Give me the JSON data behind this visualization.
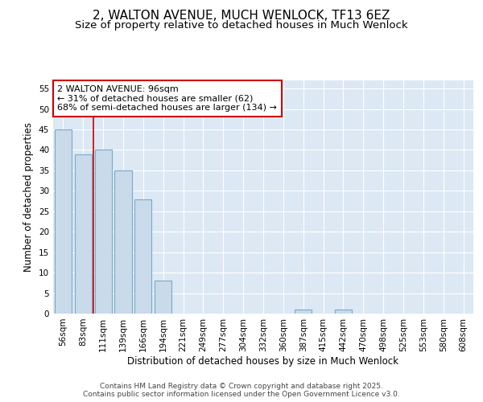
{
  "title_line1": "2, WALTON AVENUE, MUCH WENLOCK, TF13 6EZ",
  "title_line2": "Size of property relative to detached houses in Much Wenlock",
  "xlabel": "Distribution of detached houses by size in Much Wenlock",
  "ylabel": "Number of detached properties",
  "categories": [
    "56sqm",
    "83sqm",
    "111sqm",
    "139sqm",
    "166sqm",
    "194sqm",
    "221sqm",
    "249sqm",
    "277sqm",
    "304sqm",
    "332sqm",
    "360sqm",
    "387sqm",
    "415sqm",
    "442sqm",
    "470sqm",
    "498sqm",
    "525sqm",
    "553sqm",
    "580sqm",
    "608sqm"
  ],
  "values": [
    45,
    39,
    40,
    35,
    28,
    8,
    0,
    0,
    0,
    0,
    0,
    0,
    1,
    0,
    1,
    0,
    0,
    0,
    0,
    0,
    0
  ],
  "bar_color": "#c9daea",
  "bar_edgecolor": "#7aaac8",
  "vline_x": 1.5,
  "vline_color": "#cc0000",
  "annotation_text": "2 WALTON AVENUE: 96sqm\n← 31% of detached houses are smaller (62)\n68% of semi-detached houses are larger (134) →",
  "annotation_box_facecolor": "#ffffff",
  "annotation_box_edgecolor": "#cc0000",
  "ylim": [
    0,
    57
  ],
  "yticks": [
    0,
    5,
    10,
    15,
    20,
    25,
    30,
    35,
    40,
    45,
    50,
    55
  ],
  "background_color": "#dce8f4",
  "grid_color": "#ffffff",
  "footer_text": "Contains HM Land Registry data © Crown copyright and database right 2025.\nContains public sector information licensed under the Open Government Licence v3.0.",
  "title_fontsize": 11,
  "subtitle_fontsize": 9.5,
  "axis_label_fontsize": 8.5,
  "tick_fontsize": 7.5,
  "annotation_fontsize": 8,
  "footer_fontsize": 6.5
}
